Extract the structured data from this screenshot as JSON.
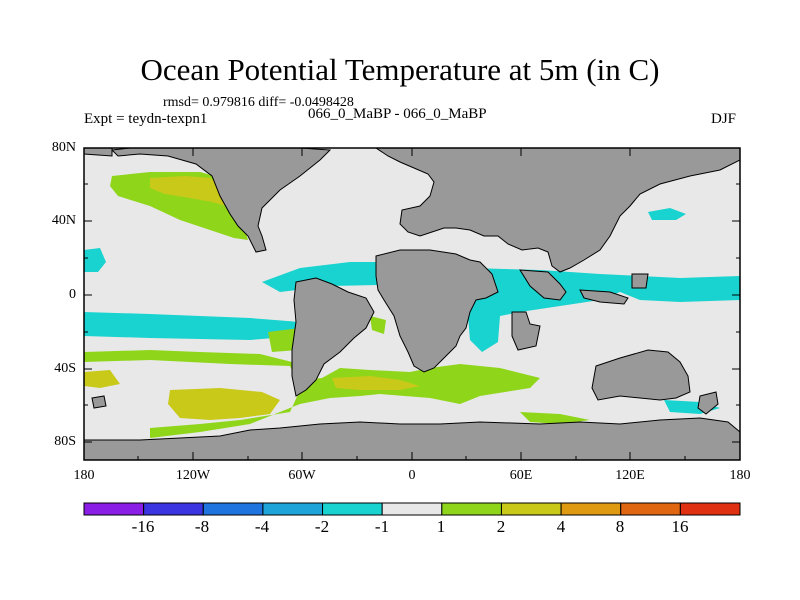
{
  "title": "Ocean Potential Temperature at 5m (in C)",
  "stats_text": "rmsd= 0.979816 diff= -0.0498428",
  "left_label": "Expt = teydn-texpn1",
  "center_label": "066_0_MaBP - 066_0_MaBP",
  "right_label": "DJF",
  "lat_ticks": [
    "80N",
    "40N",
    "0",
    "40S",
    "80S"
  ],
  "lon_ticks": [
    "180",
    "120W",
    "60W",
    "0",
    "60E",
    "120E",
    "180"
  ],
  "colorbar": {
    "labels": [
      "-16",
      "-8",
      "-4",
      "-2",
      "-1",
      "1",
      "2",
      "4",
      "8",
      "16"
    ],
    "colors": [
      "#8a1ee6",
      "#3a35e0",
      "#1f74e0",
      "#1ea4d9",
      "#18d3cf",
      "#e8e8e8",
      "#8fd61a",
      "#c9c91a",
      "#e09a12",
      "#e06612",
      "#e03012"
    ]
  },
  "colors": {
    "land": "#999999",
    "background_ocean": "#e8e8e8"
  }
}
